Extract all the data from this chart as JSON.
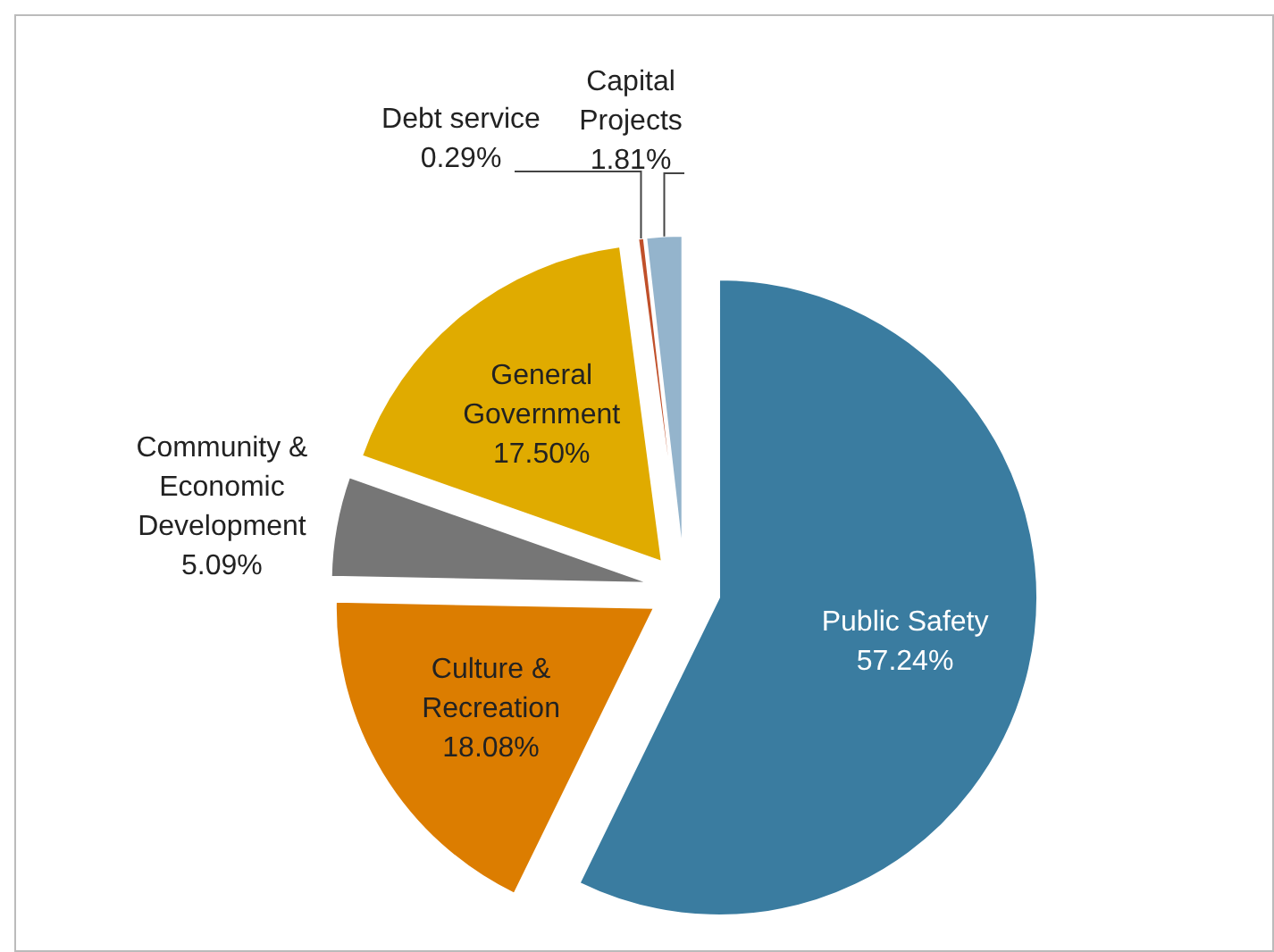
{
  "chart_data": {
    "type": "pie",
    "categories": [
      "Public Safety",
      "Culture & Recreation",
      "Community & Economic Development",
      "General Government",
      "Debt service",
      "Capital Projects"
    ],
    "values": [
      57.24,
      18.08,
      5.09,
      17.5,
      0.29,
      1.81
    ],
    "colors": [
      "#3a7ca0",
      "#dc7d00",
      "#767676",
      "#e0ab00",
      "#c0502a",
      "#94b4cc"
    ],
    "value_labels": [
      "57.24%",
      "18.08%",
      "5.09%",
      "17.50%",
      "0.29%",
      "1.81%"
    ]
  }
}
